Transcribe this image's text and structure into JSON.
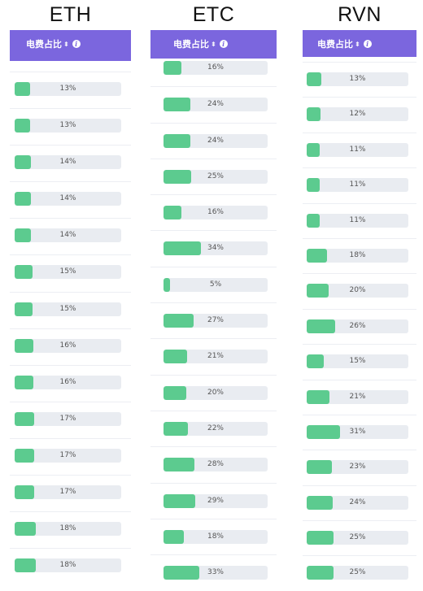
{
  "accent_color": "#7b66de",
  "bar_color": "#5ccb8f",
  "header_label": "电费占比",
  "sort_icon": "sort-icon",
  "info_icon": "info-icon",
  "columns": [
    {
      "coin": "ETH",
      "values": [
        13,
        13,
        14,
        14,
        14,
        15,
        15,
        16,
        16,
        17,
        17,
        17,
        18,
        18
      ]
    },
    {
      "coin": "ETC",
      "values": [
        16,
        24,
        24,
        25,
        16,
        34,
        5,
        27,
        21,
        20,
        22,
        28,
        29,
        18,
        33
      ]
    },
    {
      "coin": "RVN",
      "values": [
        13,
        12,
        11,
        11,
        11,
        18,
        20,
        26,
        15,
        21,
        31,
        23,
        24,
        25,
        25
      ]
    }
  ]
}
